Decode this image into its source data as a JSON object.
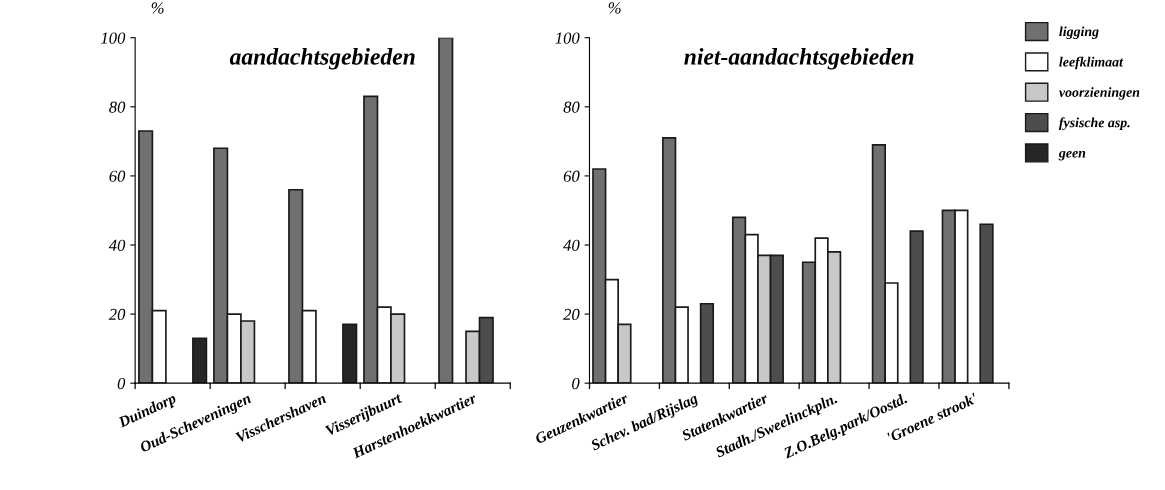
{
  "chart_data": [
    {
      "type": "bar",
      "title": "aandachtsgebieden",
      "ylabel": "%",
      "categories": [
        "Duindorp",
        "Oud-Scheveningen",
        "Visschershaven",
        "Visserijbuurt",
        "Harstenhoekkwartier"
      ],
      "ylim": [
        0,
        100
      ],
      "yticks": [
        0,
        20,
        40,
        60,
        80,
        100
      ],
      "grid": false,
      "legend": false,
      "series": [
        {
          "color": "#707070",
          "values": [
            73,
            68,
            56,
            83,
            100
          ]
        },
        {
          "color": "#ffffff",
          "values": [
            21,
            20,
            21,
            22,
            null
          ]
        },
        {
          "color": "#c8c8c8",
          "values": [
            null,
            18,
            null,
            20,
            15
          ]
        },
        {
          "color": "#4d4d4d",
          "values": [
            null,
            null,
            null,
            null,
            19
          ]
        },
        {
          "color": "#262626",
          "values": [
            13,
            null,
            17,
            null,
            null
          ]
        }
      ]
    },
    {
      "type": "bar",
      "title": "niet-aandachtsgebieden",
      "ylabel": "%",
      "categories": [
        "Geuzenkwartier",
        "Schev. bad/Rijslag",
        "Statenkwartier",
        "Stadh./Sweelinckpln.",
        "Z.O.Belg.park/Oostd.",
        "'Groene strook'"
      ],
      "ylim": [
        0,
        100
      ],
      "yticks": [
        0,
        20,
        40,
        60,
        80,
        100
      ],
      "grid": false,
      "legend": "right",
      "series": [
        {
          "name": "ligging",
          "color": "#707070",
          "values": [
            62,
            71,
            48,
            35,
            69,
            50
          ]
        },
        {
          "name": "leefklimaat",
          "color": "#ffffff",
          "values": [
            30,
            22,
            43,
            42,
            29,
            50
          ]
        },
        {
          "name": "voorzieningen",
          "color": "#c8c8c8",
          "values": [
            17,
            null,
            37,
            38,
            null,
            null
          ]
        },
        {
          "name": "fysische asp.",
          "color": "#4d4d4d",
          "values": [
            null,
            23,
            37,
            null,
            44,
            46
          ]
        },
        {
          "name": "geen",
          "color": "#262626",
          "values": [
            null,
            null,
            null,
            null,
            null,
            null
          ]
        }
      ]
    }
  ]
}
